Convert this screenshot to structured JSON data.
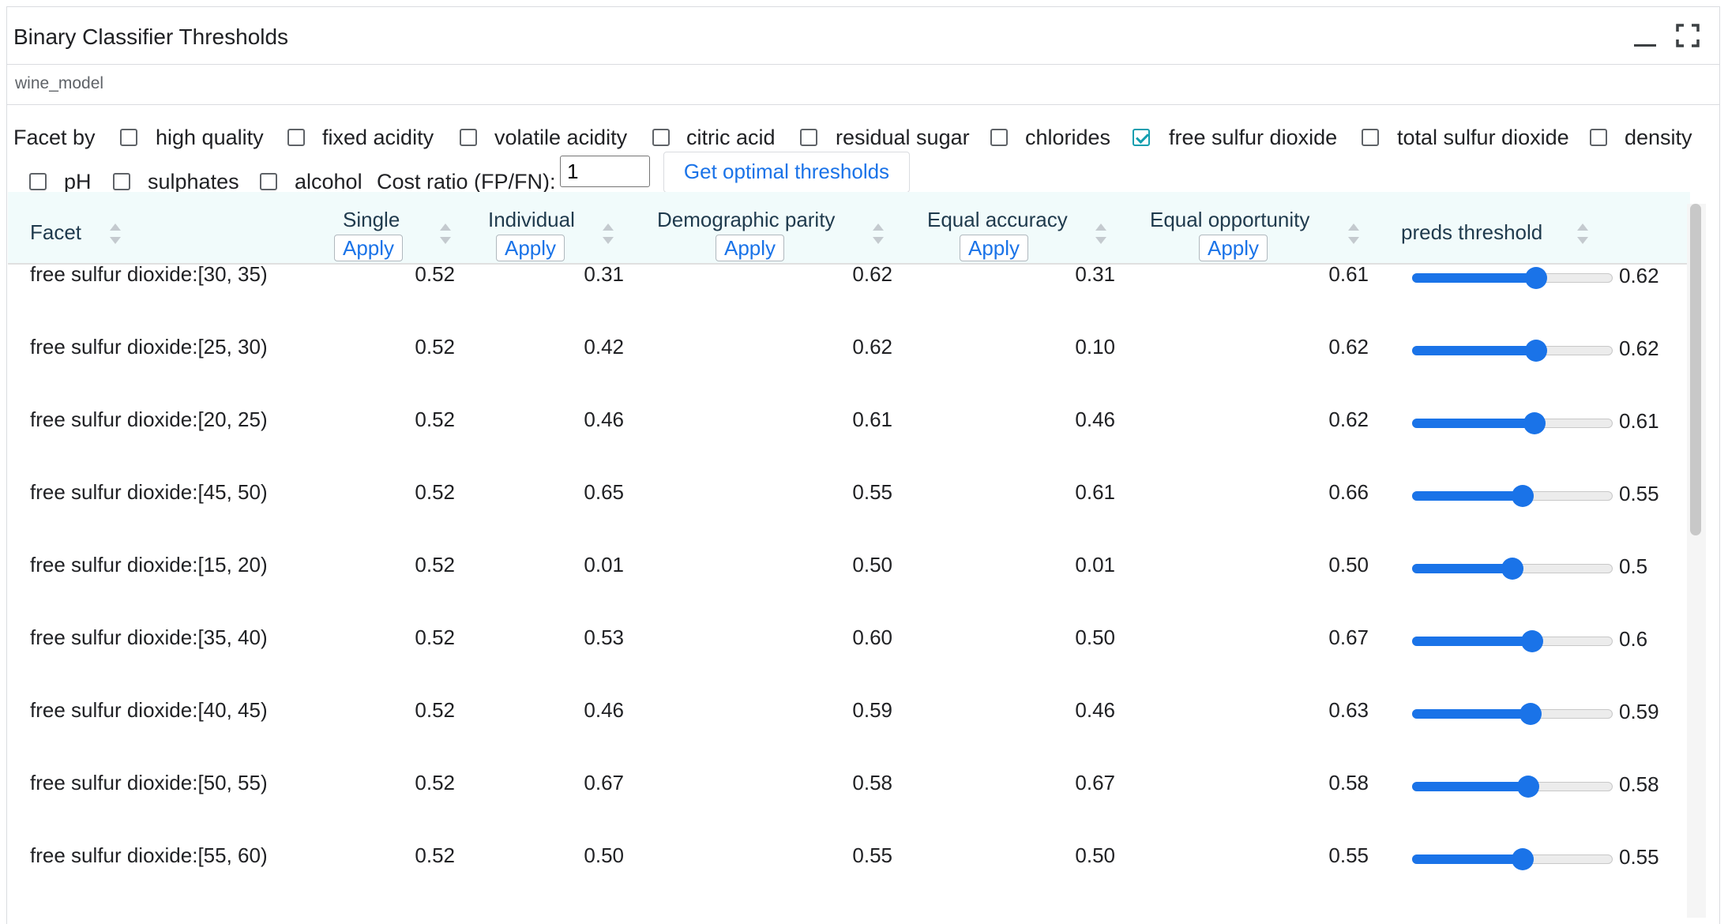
{
  "window": {
    "title": "Binary Classifier Thresholds"
  },
  "model": {
    "name": "wine_model"
  },
  "facet": {
    "label": "Facet by",
    "options": [
      {
        "label": "high quality",
        "checked": false
      },
      {
        "label": "fixed acidity",
        "checked": false
      },
      {
        "label": "volatile acidity",
        "checked": false
      },
      {
        "label": "citric acid",
        "checked": false
      },
      {
        "label": "residual sugar",
        "checked": false
      },
      {
        "label": "chlorides",
        "checked": false
      },
      {
        "label": "free sulfur dioxide",
        "checked": true
      },
      {
        "label": "total sulfur dioxide",
        "checked": false
      },
      {
        "label": "density",
        "checked": false
      },
      {
        "label": "pH",
        "checked": false
      },
      {
        "label": "sulphates",
        "checked": false
      },
      {
        "label": "alcohol",
        "checked": false
      }
    ]
  },
  "cost": {
    "label": "Cost ratio (FP/FN):",
    "value": "1"
  },
  "optimal_button": {
    "label": "Get optimal thresholds"
  },
  "table": {
    "headers": {
      "facet": "Facet",
      "single": "Single",
      "individual": "Individual",
      "demographic": "Demographic parity",
      "accuracy": "Equal accuracy",
      "opportunity": "Equal opportunity",
      "preds": "preds threshold"
    },
    "apply_label": "Apply",
    "rows": [
      {
        "facet": "free sulfur dioxide:[30, 35)",
        "single": "0.52",
        "individual": "0.31",
        "demographic": "0.62",
        "accuracy": "0.31",
        "opportunity": "0.61",
        "preds": 0.62,
        "preds_label": "0.62"
      },
      {
        "facet": "free sulfur dioxide:[25, 30)",
        "single": "0.52",
        "individual": "0.42",
        "demographic": "0.62",
        "accuracy": "0.10",
        "opportunity": "0.62",
        "preds": 0.62,
        "preds_label": "0.62"
      },
      {
        "facet": "free sulfur dioxide:[20, 25)",
        "single": "0.52",
        "individual": "0.46",
        "demographic": "0.61",
        "accuracy": "0.46",
        "opportunity": "0.62",
        "preds": 0.61,
        "preds_label": "0.61"
      },
      {
        "facet": "free sulfur dioxide:[45, 50)",
        "single": "0.52",
        "individual": "0.65",
        "demographic": "0.55",
        "accuracy": "0.61",
        "opportunity": "0.66",
        "preds": 0.55,
        "preds_label": "0.55"
      },
      {
        "facet": "free sulfur dioxide:[15, 20)",
        "single": "0.52",
        "individual": "0.01",
        "demographic": "0.50",
        "accuracy": "0.01",
        "opportunity": "0.50",
        "preds": 0.5,
        "preds_label": "0.5"
      },
      {
        "facet": "free sulfur dioxide:[35, 40)",
        "single": "0.52",
        "individual": "0.53",
        "demographic": "0.60",
        "accuracy": "0.50",
        "opportunity": "0.67",
        "preds": 0.6,
        "preds_label": "0.6"
      },
      {
        "facet": "free sulfur dioxide:[40, 45)",
        "single": "0.52",
        "individual": "0.46",
        "demographic": "0.59",
        "accuracy": "0.46",
        "opportunity": "0.63",
        "preds": 0.59,
        "preds_label": "0.59"
      },
      {
        "facet": "free sulfur dioxide:[50, 55)",
        "single": "0.52",
        "individual": "0.67",
        "demographic": "0.58",
        "accuracy": "0.67",
        "opportunity": "0.58",
        "preds": 0.58,
        "preds_label": "0.58"
      },
      {
        "facet": "free sulfur dioxide:[55, 60)",
        "single": "0.52",
        "individual": "0.50",
        "demographic": "0.55",
        "accuracy": "0.50",
        "opportunity": "0.55",
        "preds": 0.55,
        "preds_label": "0.55"
      }
    ]
  },
  "colors": {
    "accent": "#1a73e8",
    "header_bg": "#f1fbfb",
    "check": "#129eaf"
  },
  "icons": {
    "minimize": "minimize-icon",
    "maximize": "fullscreen-icon",
    "sort": "sort-icon"
  }
}
